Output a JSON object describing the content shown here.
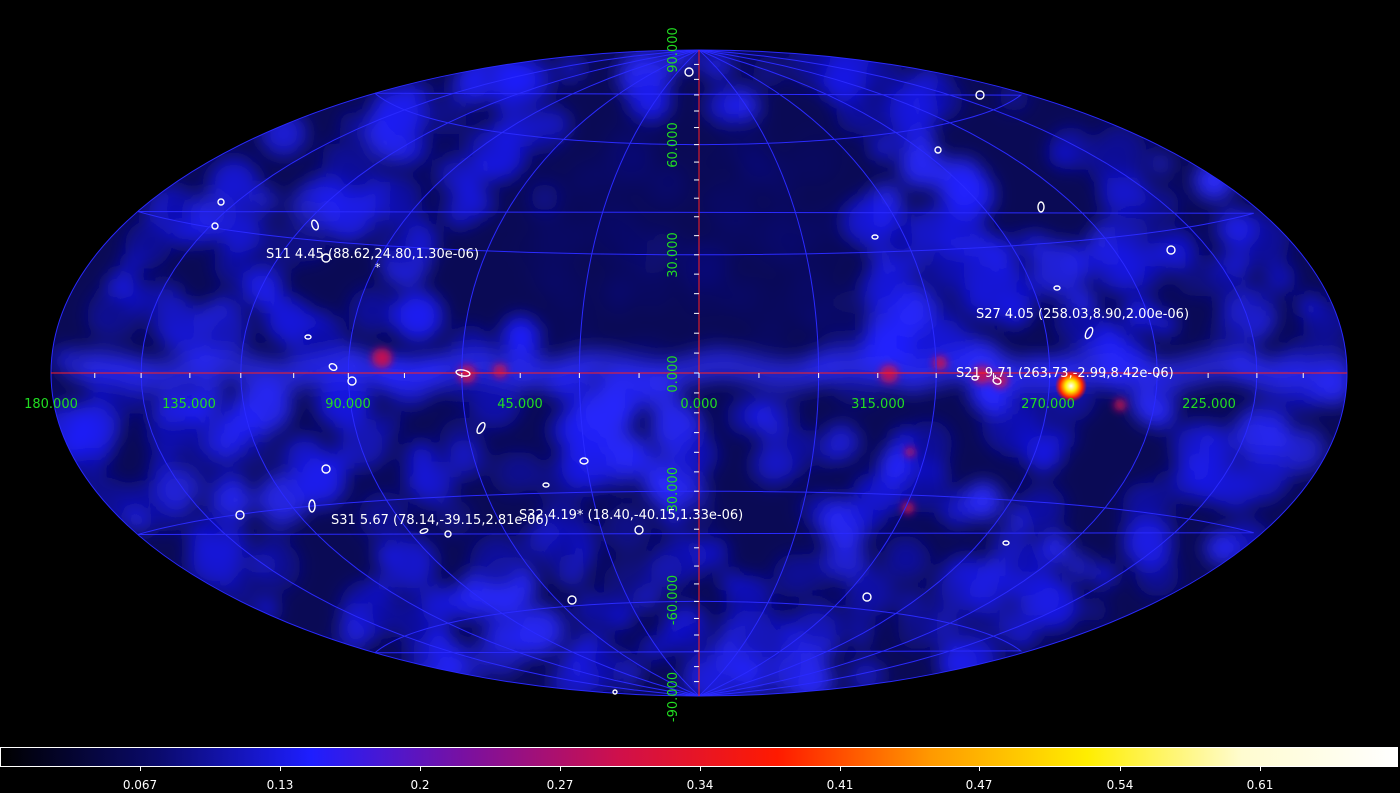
{
  "map": {
    "longitude_labels": [
      "180.000",
      "135.000",
      "90.000",
      "45.000",
      "0.000",
      "315.000",
      "270.000",
      "225.000"
    ],
    "latitude_labels": [
      "90.000",
      "60.000",
      "30.000",
      "0.000",
      "-30.000",
      "-60.000",
      "-90.000"
    ],
    "grid_color": "#2a2aff",
    "axis_color": "#ff2020",
    "label_color": "#22dd22"
  },
  "sources": [
    {
      "id": "S11",
      "label": "S11 4.45 (88.62,24.80,1.30e-06)"
    },
    {
      "id": "S27",
      "label": "S27 4.05 (258.03,8.90,2.00e-06)"
    },
    {
      "id": "S21",
      "label": "S21 9.71 (263.73,-2.99,8.42e-06)"
    },
    {
      "id": "S31",
      "label": "S31 5.67 (78.14,-39.15,2.81e-06)"
    },
    {
      "id": "S32",
      "label": "S32 4.19* (18.40,-40.15,1.33e-06)"
    }
  ],
  "colorbar": {
    "ticks": [
      "0.067",
      "0.13",
      "0.2",
      "0.27",
      "0.34",
      "0.41",
      "0.47",
      "0.54",
      "0.61"
    ],
    "colormap_stops": [
      "#000000",
      "#0a0a6a",
      "#1e1eff",
      "#7a10a0",
      "#d0104a",
      "#ff1a00",
      "#ff9a00",
      "#ffee00",
      "#fffcd0",
      "#ffffff"
    ]
  }
}
